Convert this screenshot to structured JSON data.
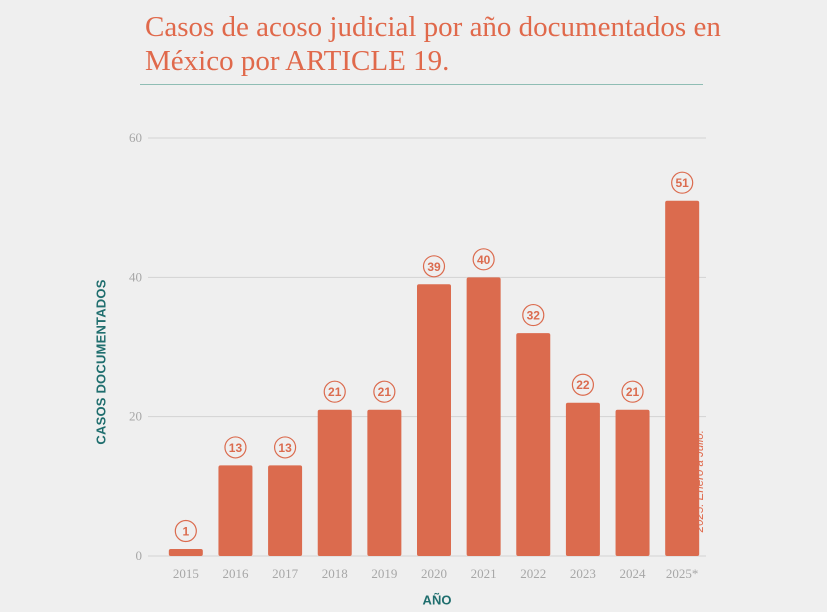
{
  "title": "Casos de acoso judicial por año documentados en México por ARTICLE 19.",
  "note": "* 2025: Enero a Julio.",
  "colors": {
    "bar": "#db6b4e",
    "title": "#e0694b",
    "axis_label": "#1f6e6e",
    "grid": "#d3d3d3",
    "tick": "#a7a7a7",
    "background": "#efefef"
  },
  "chart_data": {
    "type": "bar",
    "title": "Casos de acoso judicial por año documentados en México por ARTICLE 19.",
    "xlabel": "AÑO",
    "ylabel": "CASOS DOCUMENTADOS",
    "categories": [
      "2015",
      "2016",
      "2017",
      "2018",
      "2019",
      "2020",
      "2021",
      "2022",
      "2023",
      "2024",
      "2025*"
    ],
    "values": [
      1,
      13,
      13,
      21,
      21,
      39,
      40,
      32,
      22,
      21,
      51
    ],
    "ylim": [
      0,
      60
    ],
    "yticks": [
      0,
      20,
      40,
      60
    ],
    "grid": true,
    "data_labels": "circled above bars"
  }
}
